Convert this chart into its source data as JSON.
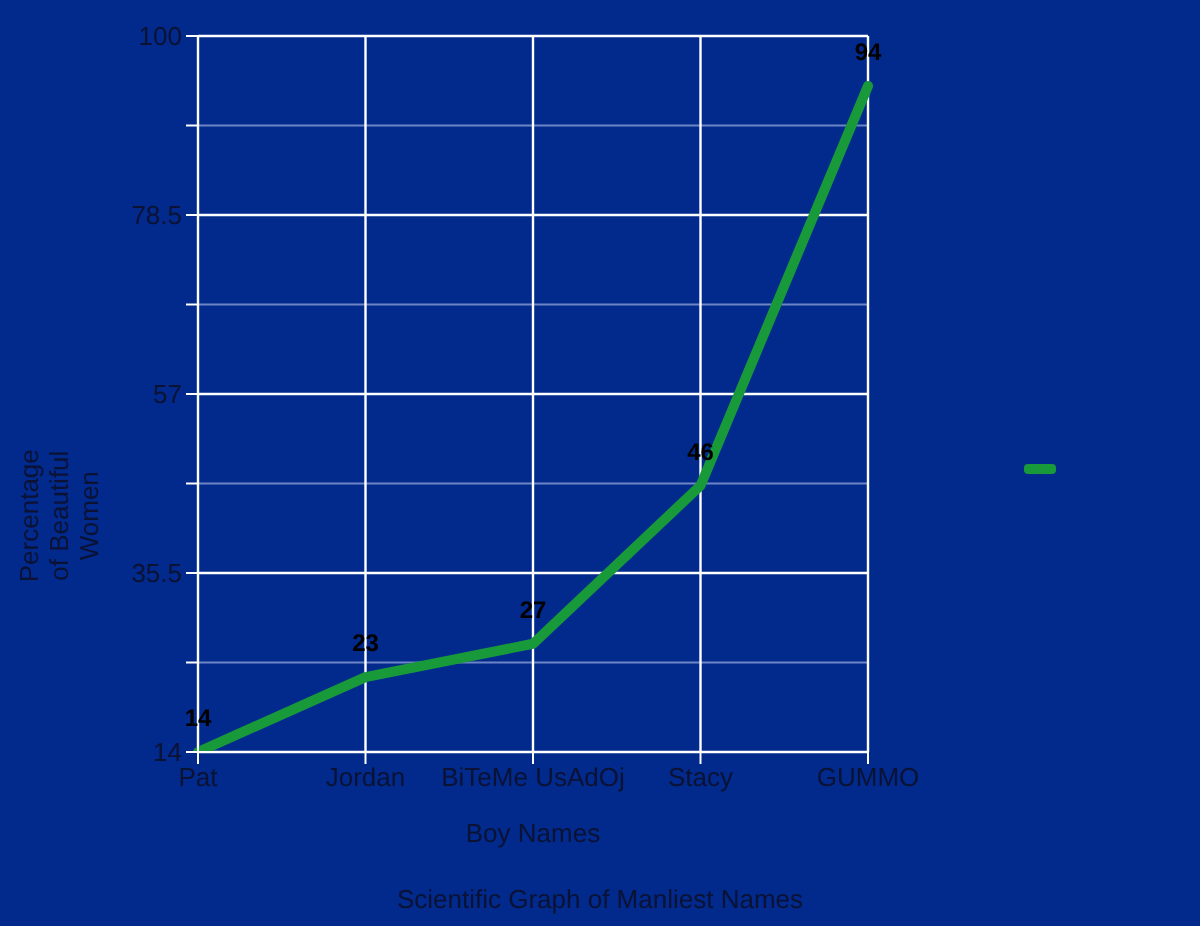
{
  "chart_data": {
    "type": "line",
    "title": "Scientific Graph of Manliest Names",
    "xlabel": "Boy Names",
    "ylabel": "Percentage of Beautiful Women",
    "categories": [
      "Pat",
      "Jordan",
      "BiTeMe UsAdOj",
      "Stacy",
      "GUMMO"
    ],
    "series": [
      {
        "color": "#18993a",
        "values": [
          14,
          23,
          27,
          46,
          94
        ]
      }
    ],
    "ylim": [
      14,
      100
    ],
    "yticks": [
      14,
      {
        "value": 24.75,
        "label": null
      },
      35.5,
      {
        "value": 46.25,
        "label": null
      },
      57,
      {
        "value": 67.75,
        "label": null
      },
      78.5,
      {
        "value": 89.25,
        "label": null
      },
      100
    ],
    "grid": true,
    "marker": "none",
    "line_style": "solid",
    "data_labels": true
  }
}
